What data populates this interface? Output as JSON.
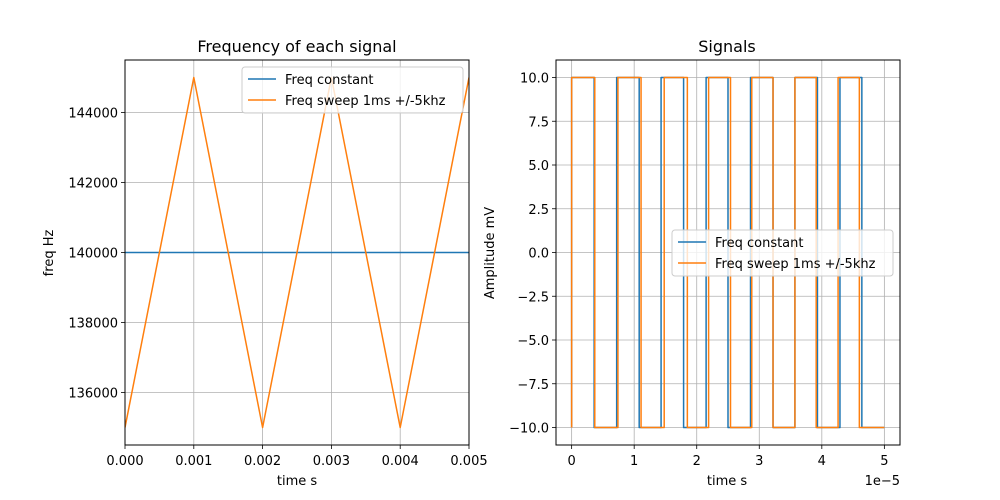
{
  "colors": {
    "series_1": "#1f77b4",
    "series_2": "#ff7f0e"
  },
  "chart_data": [
    {
      "type": "line",
      "title": "Frequency of each signal",
      "xlabel": "time s",
      "ylabel": "freq Hz",
      "xlim": [
        0,
        0.005
      ],
      "ylim": [
        134500,
        145500
      ],
      "grid": true,
      "legend_position": "top-right",
      "x_ticks": [
        {
          "value": 0,
          "label": "0.000"
        },
        {
          "value": 0.001,
          "label": "0.001"
        },
        {
          "value": 0.002,
          "label": "0.002"
        },
        {
          "value": 0.003,
          "label": "0.003"
        },
        {
          "value": 0.004,
          "label": "0.004"
        },
        {
          "value": 0.005,
          "label": "0.005"
        }
      ],
      "y_ticks": [
        {
          "value": 136000,
          "label": "136000"
        },
        {
          "value": 138000,
          "label": "138000"
        },
        {
          "value": 140000,
          "label": "140000"
        },
        {
          "value": 142000,
          "label": "142000"
        },
        {
          "value": 144000,
          "label": "144000"
        }
      ],
      "series": [
        {
          "name": "Freq constant",
          "x": [
            0,
            0.005
          ],
          "y": [
            140000,
            140000
          ]
        },
        {
          "name": "Freq sweep 1ms +/-5khz",
          "x": [
            0,
            0.001,
            0.002,
            0.003,
            0.004,
            0.005
          ],
          "y": [
            135000,
            145000,
            135000,
            145000,
            135000,
            145000
          ]
        }
      ]
    },
    {
      "type": "line",
      "title": "Signals",
      "xlabel": "time s",
      "ylabel": "Amplitude mV",
      "x_offset_text": "1e−5",
      "xlim": [
        -2.5e-06,
        5.25e-05
      ],
      "ylim": [
        -11,
        11
      ],
      "grid": true,
      "legend_position": "center-right",
      "x_ticks": [
        {
          "value": 0,
          "label": "0"
        },
        {
          "value": 1e-05,
          "label": "1"
        },
        {
          "value": 2e-05,
          "label": "2"
        },
        {
          "value": 3e-05,
          "label": "3"
        },
        {
          "value": 4e-05,
          "label": "4"
        },
        {
          "value": 5e-05,
          "label": "5"
        }
      ],
      "y_ticks": [
        {
          "value": -10,
          "label": "−10.0"
        },
        {
          "value": -7.5,
          "label": "−7.5"
        },
        {
          "value": -5,
          "label": "−5.0"
        },
        {
          "value": -2.5,
          "label": "−2.5"
        },
        {
          "value": 0,
          "label": "0.0"
        },
        {
          "value": 2.5,
          "label": "2.5"
        },
        {
          "value": 5,
          "label": "5.0"
        },
        {
          "value": 7.5,
          "label": "7.5"
        },
        {
          "value": 10,
          "label": "10.0"
        }
      ],
      "series": [
        {
          "name": "Freq constant",
          "type": "square",
          "x_start": 0,
          "x_end": 5e-05,
          "y_start": -10,
          "transitions": [
            0.0,
            3.6,
            7.2,
            10.8,
            14.3,
            17.9,
            21.5,
            25.0,
            28.6,
            32.2,
            35.7,
            39.3,
            42.9,
            46.4
          ],
          "transition_scale": 1e-06
        },
        {
          "name": "Freq sweep 1ms +/-5khz",
          "type": "square",
          "x_start": 0,
          "x_end": 5e-05,
          "y_start": -10,
          "transitions": [
            0.0,
            3.7,
            7.4,
            11.1,
            14.8,
            18.5,
            21.9,
            25.4,
            28.8,
            32.2,
            35.7,
            39.1,
            42.6,
            46.0
          ],
          "transition_scale": 1e-06
        }
      ]
    }
  ]
}
